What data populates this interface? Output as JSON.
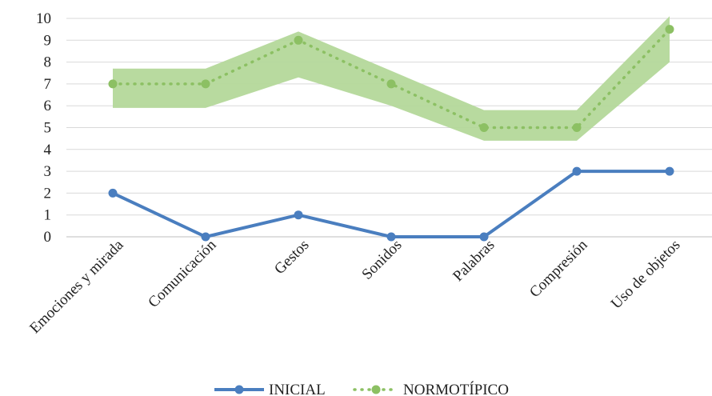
{
  "chart_data": {
    "type": "line",
    "categories": [
      "Emociones y mirada",
      "Comunicación",
      "Gestos",
      "Sonidos",
      "Palabras",
      "Compresión",
      "Uso de objetos"
    ],
    "ylim": [
      0,
      10
    ],
    "yticks": [
      "0",
      "1",
      "2",
      "3",
      "4",
      "5",
      "6",
      "7",
      "8",
      "9",
      "10"
    ],
    "grid": true,
    "legend_position": "bottom",
    "series": [
      {
        "name": "INICIAL",
        "values": [
          2,
          0,
          1,
          0,
          0,
          3,
          3
        ],
        "color": "#4a7ebf",
        "style": "solid"
      },
      {
        "name": "NORMOTÍPICO",
        "values": [
          7,
          7,
          9,
          7,
          5,
          5,
          9.5
        ],
        "color": "#8cc063",
        "style": "dotted"
      }
    ],
    "band": {
      "color": "#b4d89a",
      "lower": [
        5.9,
        5.9,
        7.3,
        6.0,
        4.4,
        4.4,
        8.0
      ],
      "upper": [
        7.7,
        7.7,
        9.4,
        7.6,
        5.8,
        5.8,
        10.1
      ]
    }
  }
}
